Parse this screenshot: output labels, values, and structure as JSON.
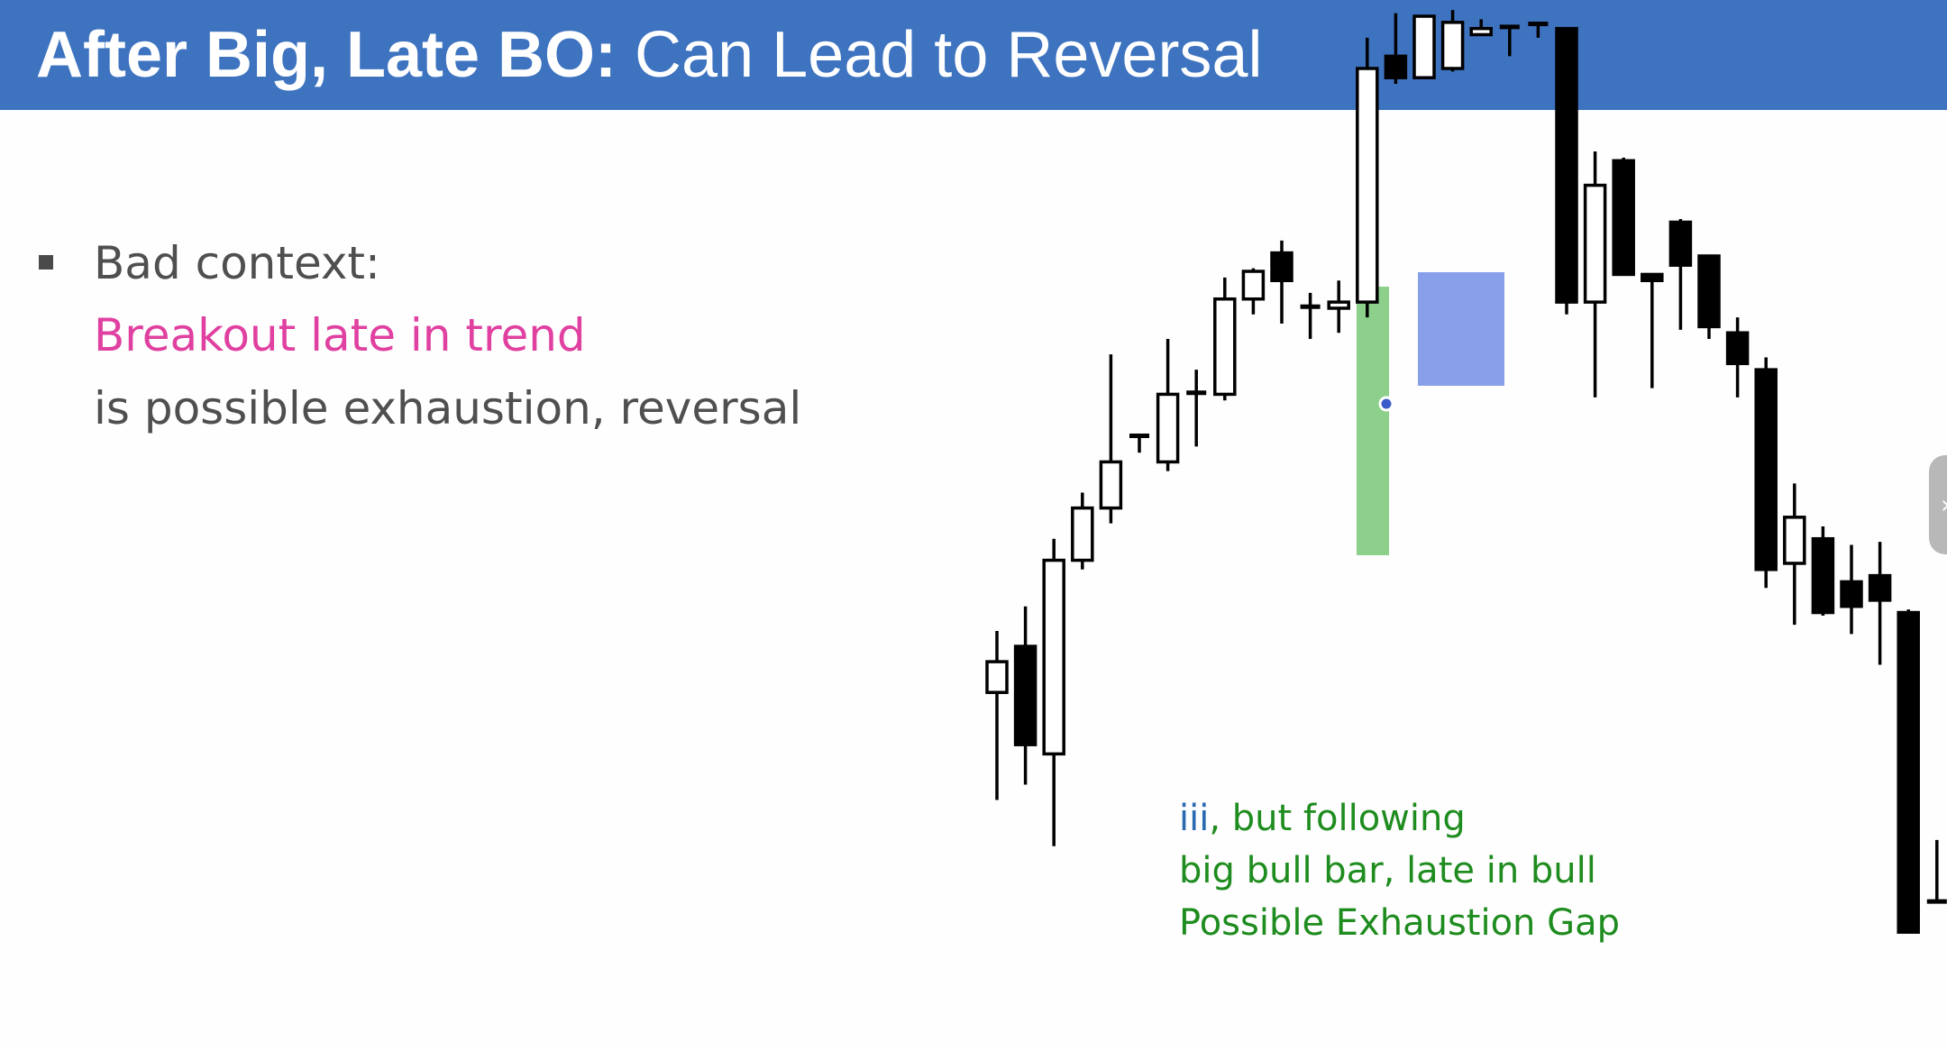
{
  "header": {
    "title_bold": "After Big, Late BO:",
    "title_rest": "Can Lead to Reversal",
    "background": "#3e73c0"
  },
  "bullet": {
    "line1": "Bad context:",
    "line2": "Breakout late in trend",
    "line3": "is possible exhaustion, reversal",
    "highlight_color": "#e040a0"
  },
  "annotation": {
    "prefix": "iii",
    "line1_rest": ", but following",
    "line2": "big bull bar, late in bull",
    "line3": "Possible Exhaustion Gap",
    "prefix_color": "#2a6ab0",
    "text_color": "#1e8c1e"
  },
  "side_tab": {
    "icon": "chevron-right-icon",
    "glyph": "›"
  },
  "chart_data": {
    "type": "candlestick",
    "title": "",
    "y_axis": "price (unlabeled)",
    "highlights": [
      {
        "name": "big bull breakout bar",
        "bar_index": 16,
        "color": "#7cc97c"
      },
      {
        "name": "ii / iii inside bars",
        "bar_range": [
          18,
          20
        ],
        "color": "#7b95e8"
      }
    ],
    "bars": [
      {
        "o": 740,
        "h": 760,
        "l": 705,
        "c": 750
      },
      {
        "o": 755,
        "h": 768,
        "l": 710,
        "c": 723
      },
      {
        "o": 720,
        "h": 790,
        "l": 690,
        "c": 783
      },
      {
        "o": 783,
        "h": 805,
        "l": 780,
        "c": 800
      },
      {
        "o": 800,
        "h": 850,
        "l": 795,
        "c": 815
      },
      {
        "o": 823,
        "h": 824,
        "l": 818,
        "c": 824
      },
      {
        "o": 815,
        "h": 855,
        "l": 812,
        "c": 837
      },
      {
        "o": 837,
        "h": 845,
        "l": 820,
        "c": 838
      },
      {
        "o": 837,
        "h": 875,
        "l": 835,
        "c": 868
      },
      {
        "o": 868,
        "h": 878,
        "l": 863,
        "c": 877
      },
      {
        "o": 883,
        "h": 887,
        "l": 860,
        "c": 874
      },
      {
        "o": 866,
        "h": 870,
        "l": 855,
        "c": 865
      },
      {
        "o": 865,
        "h": 874,
        "l": 857,
        "c": 867
      },
      {
        "o": 867,
        "h": 953,
        "l": 862,
        "c": 943
      },
      {
        "o": 947,
        "h": 961,
        "l": 938,
        "c": 940
      },
      {
        "o": 940,
        "h": 958,
        "l": 942,
        "c": 960
      },
      {
        "o": 943,
        "h": 962,
        "l": 942,
        "c": 958
      },
      {
        "o": 954,
        "h": 959,
        "l": 954,
        "c": 956
      },
      {
        "o": 957,
        "h": 956,
        "l": 947,
        "c": 956
      },
      {
        "o": 957,
        "h": 956,
        "l": 953,
        "c": 958
      },
      {
        "o": 956,
        "h": 951,
        "l": 863,
        "c": 867
      },
      {
        "o": 867,
        "h": 916,
        "l": 836,
        "c": 905
      },
      {
        "o": 913,
        "h": 914,
        "l": 888,
        "c": 876
      },
      {
        "o": 876,
        "h": 875,
        "l": 839,
        "c": 874
      },
      {
        "o": 893,
        "h": 894,
        "l": 858,
        "c": 879
      },
      {
        "o": 882,
        "h": 880,
        "l": 855,
        "c": 859
      },
      {
        "o": 857,
        "h": 862,
        "l": 836,
        "c": 847
      },
      {
        "o": 845,
        "h": 849,
        "l": 774,
        "c": 780
      },
      {
        "o": 782,
        "h": 808,
        "l": 762,
        "c": 797
      },
      {
        "o": 790,
        "h": 794,
        "l": 765,
        "c": 766
      },
      {
        "o": 776,
        "h": 788,
        "l": 759,
        "c": 768
      },
      {
        "o": 778,
        "h": 789,
        "l": 749,
        "c": 770
      },
      {
        "o": 766,
        "h": 767,
        "l": 687,
        "c": 662
      },
      {
        "o": 672,
        "h": 692,
        "l": 682,
        "c": 672
      }
    ]
  }
}
